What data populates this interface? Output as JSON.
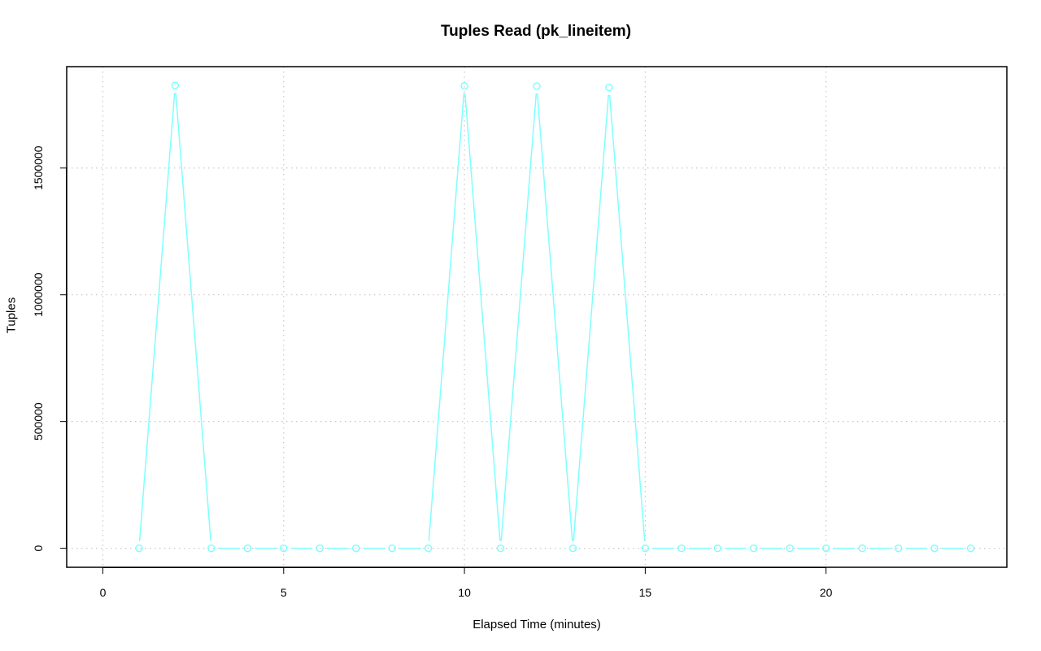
{
  "chart_data": {
    "type": "line",
    "title": "Tuples Read (pk_lineitem)",
    "xlabel": "Elapsed Time (minutes)",
    "ylabel": "Tuples",
    "xlim": [
      -1,
      25
    ],
    "ylim": [
      -75000,
      1900000
    ],
    "xticks": [
      0,
      5,
      10,
      15,
      20
    ],
    "yticks": [
      0,
      500000,
      1000000,
      1500000
    ],
    "grid": true,
    "legend": "none",
    "series_color": "#7fffff",
    "series": [
      {
        "x": [
          1,
          2,
          3,
          4,
          5,
          6,
          7,
          8,
          9,
          10,
          11,
          12,
          13,
          14,
          15,
          16,
          17,
          18,
          19,
          20,
          21,
          22,
          23,
          24
        ],
        "values": [
          0,
          1826000,
          0,
          0,
          0,
          0,
          0,
          0,
          0,
          1824000,
          0,
          1823000,
          0,
          1818000,
          0,
          0,
          0,
          0,
          0,
          0,
          0,
          0,
          0,
          0
        ]
      }
    ]
  }
}
